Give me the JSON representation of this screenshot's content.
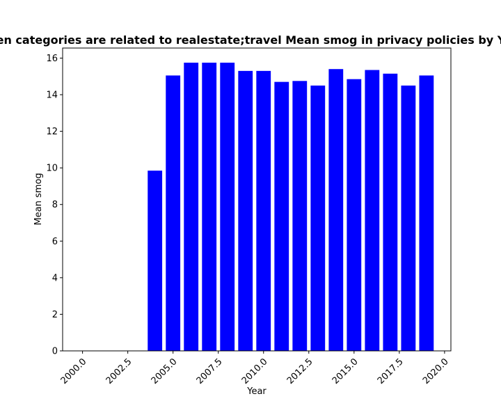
{
  "chart_data": {
    "type": "bar",
    "title": "When categories are related to realestate;travel Mean smog in privacy policies by Year",
    "xlabel": "Year",
    "ylabel": "Mean smog",
    "x": [
      2004,
      2005,
      2006,
      2007,
      2008,
      2009,
      2010,
      2011,
      2012,
      2013,
      2014,
      2015,
      2016,
      2017,
      2018,
      2019
    ],
    "values": [
      9.85,
      15.05,
      15.75,
      15.75,
      15.75,
      15.3,
      15.3,
      14.7,
      14.75,
      14.5,
      15.4,
      14.85,
      15.35,
      15.15,
      14.5,
      15.05
    ],
    "xlim": [
      1998.9,
      2020.35
    ],
    "ylim": [
      0,
      16.55
    ],
    "xticks": [
      "2000.0",
      "2002.5",
      "2005.0",
      "2007.5",
      "2010.0",
      "2012.5",
      "2015.0",
      "2017.5",
      "2020.0"
    ],
    "yticks": [
      "0",
      "2",
      "4",
      "6",
      "8",
      "10",
      "12",
      "14",
      "16"
    ],
    "bar_width": 0.8,
    "bar_color": "#0000ff",
    "grid": false,
    "legend": "none"
  }
}
